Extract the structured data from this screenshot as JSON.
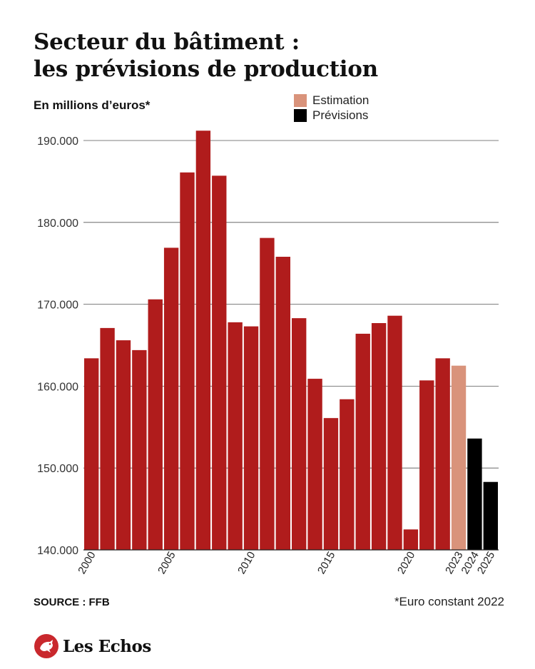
{
  "title_line1": "Secteur du bâtiment :",
  "title_line2": "les prévisions de production",
  "unit_label": "En millions d’euros*",
  "legend": [
    {
      "label": "Estimation",
      "color": "#d9937b"
    },
    {
      "label": "Prévisions",
      "color": "#000000"
    }
  ],
  "source": "SOURCE : FFB",
  "footnote": "*Euro constant 2022",
  "brand": "Les Echos",
  "brand_logo_icon": "les-echos-rooster-icon",
  "colors": {
    "actual": "#b01c1c",
    "estimation": "#d9937b",
    "forecast": "#000000"
  },
  "chart_data": {
    "type": "bar",
    "categories": [
      "2000",
      "2001",
      "2002",
      "2003",
      "2004",
      "2005",
      "2006",
      "2007",
      "2008",
      "2009",
      "2010",
      "2011",
      "2012",
      "2013",
      "2014",
      "2015",
      "2016",
      "2017",
      "2018",
      "2019",
      "2020",
      "2021",
      "2022",
      "2023",
      "2024",
      "2025"
    ],
    "values": [
      163400,
      167100,
      165600,
      164400,
      170600,
      176900,
      186100,
      191200,
      185700,
      167800,
      167300,
      178100,
      175800,
      168300,
      160900,
      156100,
      158400,
      166400,
      167700,
      168600,
      142500,
      160700,
      163400,
      162500,
      153600,
      148300
    ],
    "kinds": [
      "actual",
      "actual",
      "actual",
      "actual",
      "actual",
      "actual",
      "actual",
      "actual",
      "actual",
      "actual",
      "actual",
      "actual",
      "actual",
      "actual",
      "actual",
      "actual",
      "actual",
      "actual",
      "actual",
      "actual",
      "actual",
      "actual",
      "actual",
      "estimation",
      "forecast",
      "forecast"
    ],
    "x_tick_labels": [
      "2000",
      "2005",
      "2010",
      "2015",
      "2020",
      "2023",
      "2024",
      "2025"
    ],
    "y_ticks": [
      140000,
      150000,
      160000,
      170000,
      180000,
      190000
    ],
    "y_tick_labels": [
      "140.000",
      "150.000",
      "160.000",
      "170.000",
      "180.000",
      "190.000"
    ],
    "ylim": [
      140000,
      190000
    ],
    "grid": true,
    "legend_position": "top-right"
  }
}
